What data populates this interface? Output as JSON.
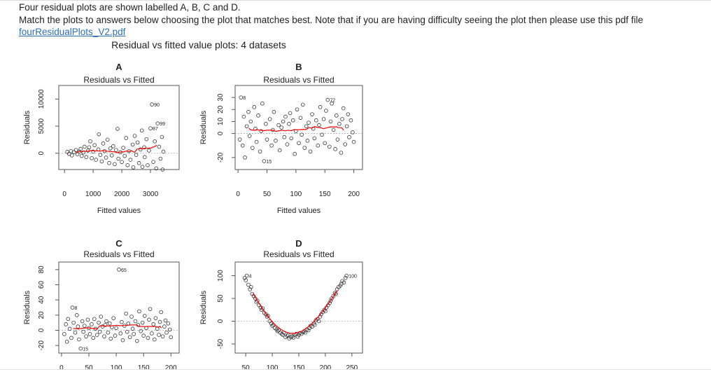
{
  "question": {
    "line1": "Four residual plots are shown labelled A, B, C and D.",
    "line2": "Match the plots to answers below choosing the plot that matches best. Note that if you are having difficulty seeing the plot then please use this pdf file",
    "link_text": "fourResidualPlots_V2.pdf"
  },
  "figure": {
    "title": "Residual vs fitted value plots: 4 datasets"
  },
  "chart_data": [
    {
      "type": "scatter",
      "letter": "A",
      "title": "Residuals vs Fitted",
      "xlabel": "Fitted values",
      "ylabel": "Residuals",
      "xlim": [
        -200,
        4000
      ],
      "ylim": [
        -3000,
        12500
      ],
      "xticks": [
        0,
        1000,
        2000,
        3000
      ],
      "yticks": [
        0,
        5000,
        10000
      ],
      "annotations": [
        {
          "text": "90",
          "x": 3050,
          "y": 9000
        },
        {
          "text": "99",
          "x": 3250,
          "y": 5500
        },
        {
          "text": "87",
          "x": 3000,
          "y": 4600
        }
      ],
      "smooth_color": "#ff0000",
      "points": [
        [
          100,
          250
        ],
        [
          160,
          -100
        ],
        [
          220,
          400
        ],
        [
          260,
          -400
        ],
        [
          330,
          200
        ],
        [
          400,
          600
        ],
        [
          450,
          -200
        ],
        [
          520,
          300
        ],
        [
          560,
          800
        ],
        [
          600,
          -500
        ],
        [
          660,
          150
        ],
        [
          700,
          1200
        ],
        [
          760,
          -700
        ],
        [
          820,
          500
        ],
        [
          860,
          1100
        ],
        [
          900,
          2200
        ],
        [
          950,
          -900
        ],
        [
          1000,
          300
        ],
        [
          1050,
          1500
        ],
        [
          1100,
          -1200
        ],
        [
          1180,
          700
        ],
        [
          1200,
          3500
        ],
        [
          1250,
          -300
        ],
        [
          1300,
          -1500
        ],
        [
          1350,
          1800
        ],
        [
          1400,
          400
        ],
        [
          1450,
          -800
        ],
        [
          1500,
          2500
        ],
        [
          1560,
          -1800
        ],
        [
          1600,
          900
        ],
        [
          1650,
          -400
        ],
        [
          1700,
          1300
        ],
        [
          1750,
          -2000
        ],
        [
          1800,
          600
        ],
        [
          1850,
          4500
        ],
        [
          1880,
          -1000
        ],
        [
          1950,
          200
        ],
        [
          2000,
          -1600
        ],
        [
          2050,
          1000
        ],
        [
          2100,
          -500
        ],
        [
          2150,
          2800
        ],
        [
          2200,
          -2200
        ],
        [
          2250,
          400
        ],
        [
          2300,
          -1200
        ],
        [
          2380,
          1600
        ],
        [
          2400,
          -2600
        ],
        [
          2450,
          3200
        ],
        [
          2500,
          -300
        ],
        [
          2550,
          2000
        ],
        [
          2600,
          -1800
        ],
        [
          2650,
          700
        ],
        [
          2700,
          4200
        ],
        [
          2720,
          -2500
        ],
        [
          2780,
          1100
        ],
        [
          2800,
          -700
        ],
        [
          2860,
          2600
        ],
        [
          2900,
          -2200
        ],
        [
          2950,
          500
        ],
        [
          3000,
          4600
        ],
        [
          3050,
          9000
        ],
        [
          3100,
          -1600
        ],
        [
          3150,
          2200
        ],
        [
          3200,
          -2800
        ],
        [
          3250,
          5500
        ],
        [
          3300,
          1200
        ],
        [
          3350,
          -1000
        ],
        [
          3400,
          3000
        ],
        [
          3420,
          -3000
        ],
        [
          3450,
          300
        ]
      ]
    },
    {
      "type": "scatter",
      "letter": "B",
      "title": "Residuals vs Fitted",
      "xlabel": "Fitted values",
      "ylabel": "Residuals",
      "xlim": [
        -5,
        215
      ],
      "ylim": [
        -30,
        40
      ],
      "xticks": [
        0,
        50,
        100,
        150,
        200
      ],
      "yticks": [
        -20,
        0,
        10,
        20,
        30
      ],
      "annotations": [
        {
          "text": "8",
          "x": 5,
          "y": 30
        },
        {
          "text": "72",
          "x": 155,
          "y": 28
        },
        {
          "text": "15",
          "x": 45,
          "y": -23
        }
      ],
      "smooth_color": "#ff0000",
      "points": [
        [
          3,
          -5
        ],
        [
          5,
          30
        ],
        [
          8,
          -10
        ],
        [
          10,
          14
        ],
        [
          12,
          -20
        ],
        [
          15,
          6
        ],
        [
          18,
          18
        ],
        [
          20,
          -2
        ],
        [
          22,
          10
        ],
        [
          25,
          -12
        ],
        [
          28,
          22
        ],
        [
          30,
          4
        ],
        [
          32,
          -7
        ],
        [
          35,
          15
        ],
        [
          38,
          -15
        ],
        [
          40,
          2
        ],
        [
          42,
          25
        ],
        [
          45,
          -23
        ],
        [
          48,
          8
        ],
        [
          50,
          -5
        ],
        [
          55,
          12
        ],
        [
          58,
          -10
        ],
        [
          60,
          3
        ],
        [
          62,
          18
        ],
        [
          65,
          -6
        ],
        [
          70,
          7
        ],
        [
          72,
          -14
        ],
        [
          75,
          5
        ],
        [
          78,
          10
        ],
        [
          80,
          -3
        ],
        [
          82,
          14
        ],
        [
          85,
          -9
        ],
        [
          88,
          8
        ],
        [
          90,
          17
        ],
        [
          92,
          -4
        ],
        [
          95,
          11
        ],
        [
          98,
          -17
        ],
        [
          100,
          2
        ],
        [
          102,
          20
        ],
        [
          105,
          -8
        ],
        [
          108,
          13
        ],
        [
          110,
          -1
        ],
        [
          112,
          24
        ],
        [
          115,
          -12
        ],
        [
          118,
          6
        ],
        [
          120,
          -6
        ],
        [
          122,
          9
        ],
        [
          125,
          -15
        ],
        [
          128,
          16
        ],
        [
          130,
          4
        ],
        [
          132,
          -4
        ],
        [
          135,
          11
        ],
        [
          138,
          -10
        ],
        [
          140,
          7
        ],
        [
          142,
          22
        ],
        [
          145,
          -1
        ],
        [
          148,
          12
        ],
        [
          150,
          -8
        ],
        [
          152,
          19
        ],
        [
          155,
          28
        ],
        [
          158,
          -11
        ],
        [
          160,
          10
        ],
        [
          162,
          25
        ],
        [
          165,
          3
        ],
        [
          168,
          -13
        ],
        [
          170,
          15
        ],
        [
          172,
          -5
        ],
        [
          175,
          8
        ],
        [
          178,
          -16
        ],
        [
          180,
          12
        ],
        [
          182,
          21
        ],
        [
          185,
          -9
        ],
        [
          188,
          6
        ],
        [
          190,
          16
        ],
        [
          192,
          -3
        ],
        [
          195,
          11
        ],
        [
          198,
          1
        ],
        [
          200,
          -7
        ]
      ]
    },
    {
      "type": "scatter",
      "letter": "C",
      "title": "Residuals vs Fitted",
      "xlabel": "",
      "ylabel": "Residuals",
      "xlim": [
        -5,
        215
      ],
      "ylim": [
        -30,
        90
      ],
      "xticks": [
        0,
        50,
        100,
        150,
        200
      ],
      "yticks": [
        -20,
        0,
        20,
        40,
        60,
        80
      ],
      "annotations": [
        {
          "text": "8",
          "x": 20,
          "y": 30
        },
        {
          "text": "65",
          "x": 105,
          "y": 80
        },
        {
          "text": "15",
          "x": 35,
          "y": -24
        }
      ],
      "smooth_color": "#ff0000",
      "points": [
        [
          5,
          -5
        ],
        [
          8,
          8
        ],
        [
          10,
          -15
        ],
        [
          12,
          15
        ],
        [
          15,
          2
        ],
        [
          18,
          -10
        ],
        [
          20,
          30
        ],
        [
          22,
          10
        ],
        [
          25,
          -3
        ],
        [
          28,
          20
        ],
        [
          30,
          5
        ],
        [
          32,
          -12
        ],
        [
          35,
          -24
        ],
        [
          38,
          12
        ],
        [
          40,
          -2
        ],
        [
          42,
          6
        ],
        [
          45,
          -8
        ],
        [
          48,
          14
        ],
        [
          50,
          3
        ],
        [
          52,
          -5
        ],
        [
          55,
          8
        ],
        [
          58,
          -10
        ],
        [
          60,
          15
        ],
        [
          62,
          2
        ],
        [
          65,
          -6
        ],
        [
          68,
          10
        ],
        [
          70,
          -2
        ],
        [
          72,
          18
        ],
        [
          75,
          5
        ],
        [
          78,
          -8
        ],
        [
          80,
          7
        ],
        [
          82,
          12
        ],
        [
          85,
          -3
        ],
        [
          88,
          9
        ],
        [
          90,
          -11
        ],
        [
          92,
          4
        ],
        [
          95,
          16
        ],
        [
          98,
          -7
        ],
        [
          100,
          3
        ],
        [
          105,
          80
        ],
        [
          108,
          -4
        ],
        [
          110,
          11
        ],
        [
          112,
          -13
        ],
        [
          115,
          6
        ],
        [
          118,
          22
        ],
        [
          120,
          -2
        ],
        [
          122,
          9
        ],
        [
          125,
          -9
        ],
        [
          128,
          18
        ],
        [
          130,
          2
        ],
        [
          132,
          -5
        ],
        [
          135,
          12
        ],
        [
          138,
          -14
        ],
        [
          140,
          7
        ],
        [
          142,
          25
        ],
        [
          145,
          -1
        ],
        [
          148,
          10
        ],
        [
          150,
          -7
        ],
        [
          152,
          19
        ],
        [
          155,
          3
        ],
        [
          158,
          -10
        ],
        [
          160,
          14
        ],
        [
          162,
          28
        ],
        [
          165,
          -4
        ],
        [
          168,
          8
        ],
        [
          170,
          -12
        ],
        [
          172,
          16
        ],
        [
          175,
          2
        ],
        [
          178,
          -6
        ],
        [
          180,
          11
        ],
        [
          182,
          24
        ],
        [
          185,
          -8
        ],
        [
          188,
          5
        ],
        [
          190,
          13
        ],
        [
          192,
          -3
        ],
        [
          195,
          9
        ],
        [
          198,
          1
        ],
        [
          200,
          -9
        ]
      ]
    },
    {
      "type": "scatter",
      "letter": "D",
      "title": "Residuals vs Fitted",
      "xlabel": "",
      "ylabel": "Residuals",
      "xlim": [
        30,
        270
      ],
      "ylim": [
        -70,
        130
      ],
      "xticks": [
        50,
        100,
        150,
        200,
        250
      ],
      "yticks": [
        -50,
        0,
        50,
        100
      ],
      "annotations": [
        {
          "text": "4",
          "x": 52,
          "y": 100
        },
        {
          "text": "100",
          "x": 240,
          "y": 100
        }
      ],
      "smooth_color": "#ff0000",
      "points": [
        [
          48,
          95
        ],
        [
          50,
          90
        ],
        [
          52,
          100
        ],
        [
          55,
          80
        ],
        [
          58,
          70
        ],
        [
          60,
          75
        ],
        [
          62,
          60
        ],
        [
          65,
          55
        ],
        [
          68,
          50
        ],
        [
          70,
          42
        ],
        [
          72,
          45
        ],
        [
          75,
          35
        ],
        [
          78,
          30
        ],
        [
          80,
          25
        ],
        [
          82,
          28
        ],
        [
          85,
          18
        ],
        [
          88,
          15
        ],
        [
          90,
          10
        ],
        [
          92,
          12
        ],
        [
          95,
          0
        ],
        [
          98,
          -5
        ],
        [
          100,
          -10
        ],
        [
          102,
          -8
        ],
        [
          105,
          -15
        ],
        [
          108,
          -18
        ],
        [
          110,
          -22
        ],
        [
          112,
          -20
        ],
        [
          115,
          -25
        ],
        [
          118,
          -28
        ],
        [
          120,
          -30
        ],
        [
          122,
          -25
        ],
        [
          125,
          -35
        ],
        [
          128,
          -32
        ],
        [
          130,
          -30
        ],
        [
          132,
          -38
        ],
        [
          135,
          -35
        ],
        [
          138,
          -33
        ],
        [
          140,
          -36
        ],
        [
          142,
          -30
        ],
        [
          145,
          -28
        ],
        [
          148,
          -34
        ],
        [
          150,
          -30
        ],
        [
          152,
          -26
        ],
        [
          155,
          -28
        ],
        [
          158,
          -24
        ],
        [
          160,
          -22
        ],
        [
          162,
          -25
        ],
        [
          165,
          -18
        ],
        [
          168,
          -20
        ],
        [
          170,
          -15
        ],
        [
          172,
          -10
        ],
        [
          175,
          -12
        ],
        [
          178,
          -5
        ],
        [
          180,
          -8
        ],
        [
          182,
          2
        ],
        [
          185,
          5
        ],
        [
          188,
          0
        ],
        [
          190,
          10
        ],
        [
          192,
          15
        ],
        [
          195,
          20
        ],
        [
          198,
          25
        ],
        [
          200,
          22
        ],
        [
          202,
          30
        ],
        [
          205,
          35
        ],
        [
          208,
          40
        ],
        [
          210,
          45
        ],
        [
          212,
          50
        ],
        [
          215,
          55
        ],
        [
          218,
          62
        ],
        [
          220,
          60
        ],
        [
          222,
          70
        ],
        [
          225,
          75
        ],
        [
          228,
          78
        ],
        [
          230,
          82
        ],
        [
          232,
          88
        ],
        [
          235,
          85
        ],
        [
          238,
          95
        ],
        [
          240,
          100
        ]
      ]
    }
  ]
}
